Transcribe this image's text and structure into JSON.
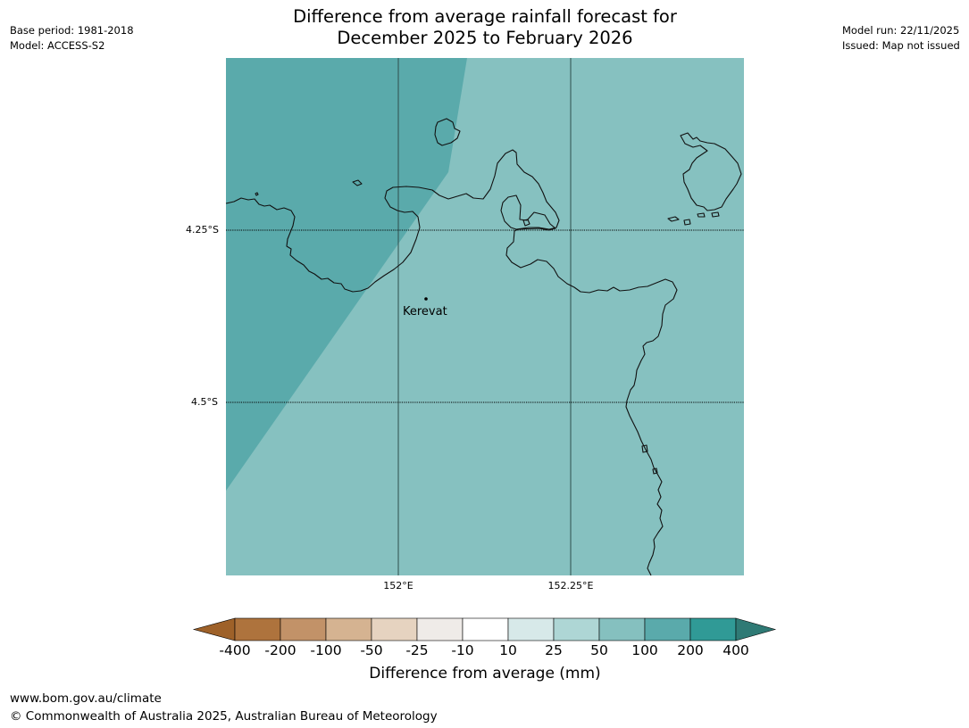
{
  "meta": {
    "base_period": "Base period: 1981-2018",
    "model": "Model: ACCESS-S2",
    "model_run": "Model run: 22/11/2025",
    "issued": "Issued: Map not issued"
  },
  "title": {
    "line1": "Difference from average rainfall forecast for",
    "line2": "December 2025 to February 2026"
  },
  "map": {
    "lat_labels": [
      "4.25°S",
      "4.5°S"
    ],
    "lon_labels": [
      "152°E",
      "152.25°E"
    ],
    "town": "Kerevat",
    "colors": {
      "band_100_200": "#5aaaab",
      "band_50_100": "#86c1c0",
      "coastline": "#111111",
      "meridian": "#2f4f4c"
    }
  },
  "legend": {
    "title": "Difference from average (mm)",
    "ticks": [
      "-400",
      "-200",
      "-100",
      "-50",
      "-25",
      "-10",
      "10",
      "25",
      "50",
      "100",
      "200",
      "400"
    ],
    "bins": [
      {
        "color": "#9e6129"
      },
      {
        "color": "#ae733d"
      },
      {
        "color": "#c29268"
      },
      {
        "color": "#d5b391"
      },
      {
        "color": "#e6d3c0"
      },
      {
        "color": "#efebe8"
      },
      {
        "color": "#ffffff"
      },
      {
        "color": "#d7e9e9"
      },
      {
        "color": "#aed6d5"
      },
      {
        "color": "#85c0bf"
      },
      {
        "color": "#5aaaab"
      },
      {
        "color": "#309a96"
      },
      {
        "color": "#2f7a75"
      }
    ]
  },
  "footer": {
    "url": "www.bom.gov.au/climate",
    "copyright": "© Commonwealth of Australia 2025, Australian Bureau of Meteorology"
  }
}
